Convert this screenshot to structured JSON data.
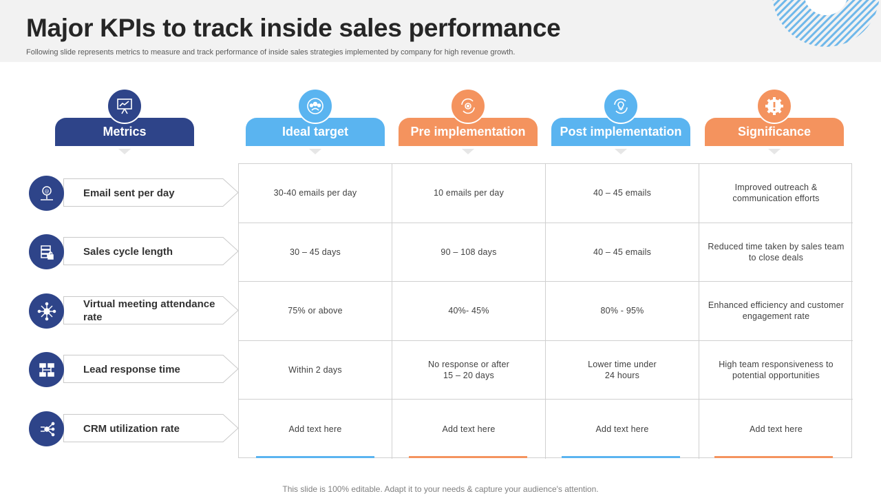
{
  "title": "Major KPIs to track inside sales performance",
  "subtitle": "Following slide represents metrics to measure and track performance of inside sales strategies implemented by company for high revenue growth.",
  "footer": "This slide is 100% editable. Adapt it to your needs & capture your audience's attention.",
  "colors": {
    "navy": "#2e4489",
    "blue": "#5ab4f0",
    "orange": "#f4935e"
  },
  "headers": [
    {
      "label": "Metrics",
      "icon": "presentation-chart-icon",
      "color": "#2e4489"
    },
    {
      "label": "Ideal target",
      "icon": "team-target-icon",
      "color": "#5ab4f0"
    },
    {
      "label": "Pre implementation",
      "icon": "gear-cycle-icon",
      "color": "#f4935e"
    },
    {
      "label": "Post implementation",
      "icon": "lightbulb-cycle-icon",
      "color": "#5ab4f0"
    },
    {
      "label": "Significance",
      "icon": "gear-exclamation-icon",
      "color": "#f4935e"
    }
  ],
  "rows": [
    {
      "metric": "Email sent per day",
      "icon": "email-pin-icon",
      "cells": [
        "30-40 emails per day",
        "10 emails per day",
        "40 – 45 emails",
        "Improved outreach &\ncommunication efforts"
      ]
    },
    {
      "metric": "Sales cycle length",
      "icon": "server-lock-icon",
      "cells": [
        "30 – 45 days",
        "90 – 108 days",
        "40 – 45 emails",
        "Reduced time taken by sales team\nto close deals"
      ]
    },
    {
      "metric": "Virtual meeting attendance rate",
      "icon": "network-hub-icon",
      "cells": [
        "75% or above",
        "40%- 45%",
        "80% - 95%",
        "Enhanced efficiency and customer\nengagement rate"
      ]
    },
    {
      "metric": "Lead response time",
      "icon": "chat-flow-icon",
      "cells": [
        "Within 2 days",
        "No response or after\n15 – 20 days",
        "Lower time under\n24 hours",
        "High team responsiveness to\npotential opportunities"
      ]
    },
    {
      "metric": "CRM utilization rate",
      "icon": "crm-network-icon",
      "cells": [
        "Add text here",
        "Add text here",
        "Add text here",
        "Add text here"
      ]
    }
  ]
}
